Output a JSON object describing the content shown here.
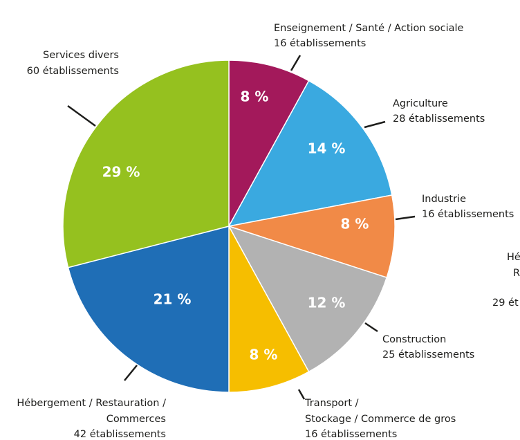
{
  "chart_data": {
    "type": "pie",
    "slices": [
      {
        "label": [
          "Enseignement / Santé / Action sociale",
          "16 établissements"
        ],
        "value": 8,
        "value_label": "8 %",
        "color": "#a3195b"
      },
      {
        "label": [
          "Agriculture",
          "28 établissements"
        ],
        "value": 14,
        "value_label": "14 %",
        "color": "#3aa9e0"
      },
      {
        "label": [
          "Industrie",
          "16 établissements"
        ],
        "value": 8,
        "value_label": "8 %",
        "color": "#f18a47"
      },
      {
        "label": [
          "Construction",
          "25 établissements"
        ],
        "value": 12,
        "value_label": "12 %",
        "color": "#b2b2b2"
      },
      {
        "label": [
          "Transport /",
          "Stockage / Commerce de gros",
          "16 établissements"
        ],
        "value": 8,
        "value_label": "8 %",
        "color": "#f6be00"
      },
      {
        "label": [
          "Hébergement / Restauration /",
          "Commerces",
          "42 établissements"
        ],
        "value": 21,
        "value_label": "21 %",
        "color": "#1f6eb6"
      },
      {
        "label": [
          "Services divers",
          "60 établissements"
        ],
        "value": 29,
        "value_label": "29 %",
        "color": "#95c11f"
      }
    ],
    "cropped_texts": [
      "Hé",
      "R",
      "29 ét"
    ]
  }
}
